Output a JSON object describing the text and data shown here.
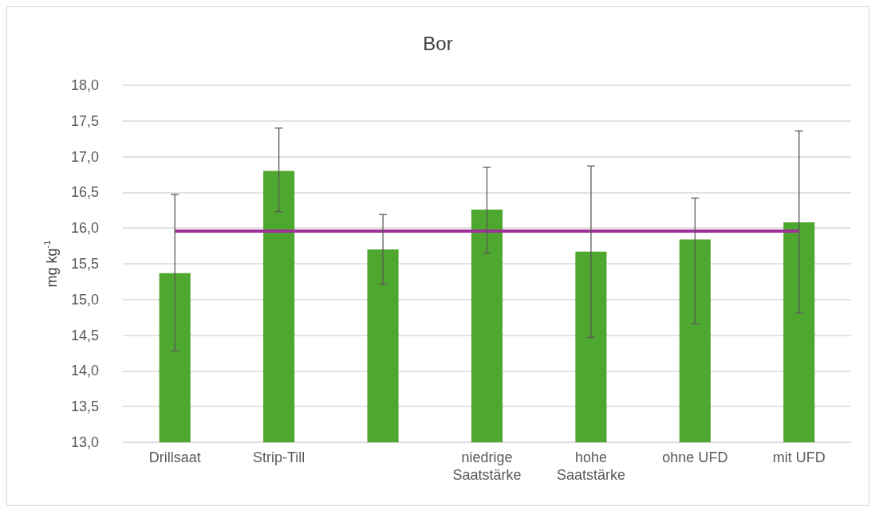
{
  "chart_data": {
    "type": "bar",
    "title": "Bor",
    "ylabel": "mg kg$^{-1}$",
    "categories": [
      "Drillsaat",
      "Strip-Till",
      null,
      "niedrige\nSaatstärke",
      "hohe\nSaatstärke",
      "ohne UFD",
      "mit UFD"
    ],
    "values": [
      15.37,
      16.8,
      15.7,
      16.26,
      15.67,
      15.84,
      16.08
    ],
    "errors": [
      [
        14.28,
        16.47
      ],
      [
        16.23,
        17.4
      ],
      [
        15.21,
        16.19
      ],
      [
        15.65,
        16.85
      ],
      [
        14.47,
        16.87
      ],
      [
        14.66,
        16.42
      ],
      [
        14.81,
        17.36
      ]
    ],
    "color": "#4ea72e",
    "ylim": [
      13,
      18
    ],
    "yticks": [
      {
        "value": 13,
        "label": "13,0"
      },
      {
        "value": 13.5,
        "label": "13,5"
      },
      {
        "value": 14,
        "label": "14,0"
      },
      {
        "value": 14.5,
        "label": "14,5"
      },
      {
        "value": 15,
        "label": "15,0"
      },
      {
        "value": 15.5,
        "label": "15,5"
      },
      {
        "value": 16,
        "label": "16,0"
      },
      {
        "value": 16.5,
        "label": "16,5"
      },
      {
        "value": 17,
        "label": "17,0"
      },
      {
        "value": 17.5,
        "label": "17,5"
      },
      {
        "value": 18,
        "label": "18,0"
      }
    ],
    "ref_lines": [
      {
        "axis": "y",
        "value": 15.96,
        "color": "#a0309a"
      }
    ],
    "grid": "y"
  }
}
